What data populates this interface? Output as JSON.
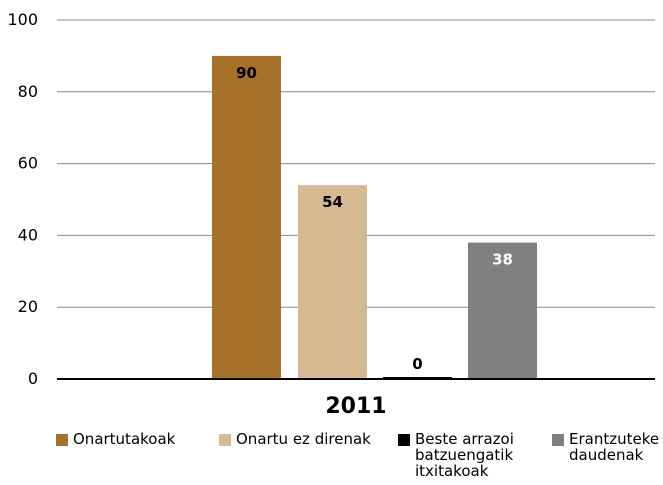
{
  "chart_data": {
    "type": "bar",
    "categories": [
      "2011"
    ],
    "series": [
      {
        "name": "Onartutakoak",
        "values": [
          90
        ],
        "color": "#a67128"
      },
      {
        "name": "Onartu ez direnak",
        "values": [
          54
        ],
        "color": "#d4b993"
      },
      {
        "name": "Beste arrazoi\nbatzuengatik\nitxitakoak",
        "values": [
          0
        ],
        "color": "#000000"
      },
      {
        "name": "Erantzuteke\ndaudenak",
        "values": [
          38
        ],
        "color": "#808080"
      }
    ],
    "data_labels": [
      "90",
      "54",
      "0",
      "38"
    ],
    "y_ticks": [
      "0",
      "20",
      "40",
      "60",
      "80",
      "100"
    ],
    "ylim": [
      0,
      100
    ],
    "grid": true,
    "legend_position": "bottom",
    "title": "",
    "xlabel": "",
    "ylabel": ""
  }
}
